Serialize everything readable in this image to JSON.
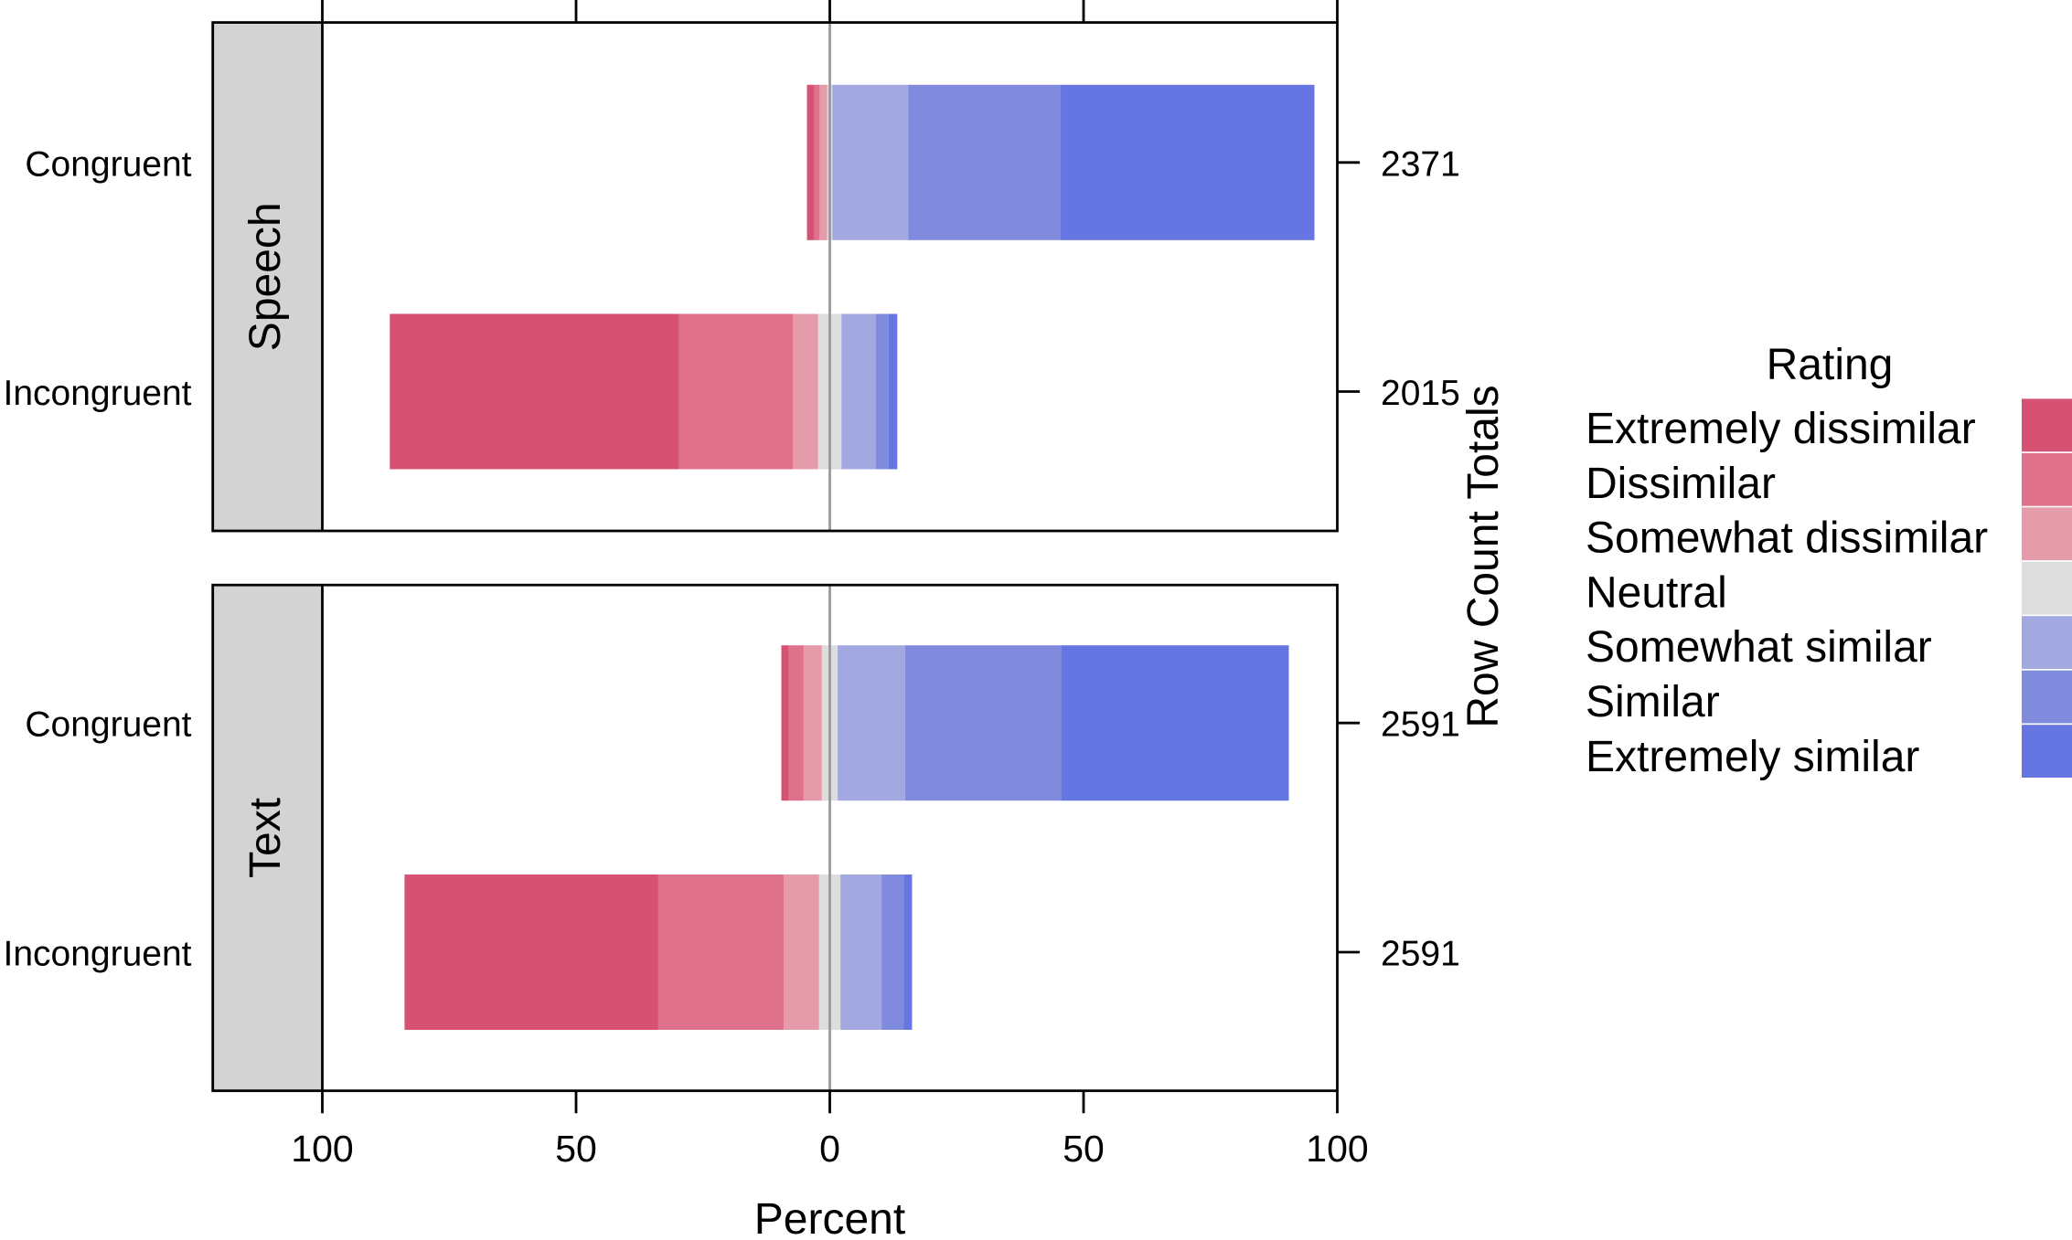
{
  "chart_data": {
    "type": "bar",
    "orientation": "horizontal",
    "stacking": "diverging",
    "xlabel": "Percent",
    "right_label": "Row Count Totals",
    "xlim": [
      -100,
      100
    ],
    "x_ticks": [
      -100,
      -50,
      0,
      50,
      100
    ],
    "x_tick_labels": [
      "100",
      "50",
      "0",
      "50",
      "100"
    ],
    "reference_line": 0,
    "reference_line_color": "#999999",
    "strip_color": "#D3D3D3",
    "legend": {
      "title": "Rating",
      "position": "right",
      "levels": [
        "Extremely dissimilar",
        "Dissimilar",
        "Somewhat dissimilar",
        "Neutral",
        "Somewhat similar",
        "Similar",
        "Extremely similar"
      ],
      "colors": [
        "#D75272",
        "#E0718C",
        "#E59BAA",
        "#DDDDDD",
        "#A3A9E0",
        "#808BDD",
        "#6575E1"
      ]
    },
    "panels": [
      {
        "strip": "Speech",
        "rows": [
          {
            "label": "Congruent",
            "total": 2371,
            "values": [
              1.5,
              1.0,
              1.5,
              1.0,
              15.0,
              30.0,
              50.0
            ]
          },
          {
            "label": "Incongruent",
            "total": 2015,
            "values": [
              57.0,
              22.4,
              5.0,
              4.6,
              6.8,
              2.5,
              1.7
            ]
          }
        ]
      },
      {
        "strip": "Text",
        "rows": [
          {
            "label": "Congruent",
            "total": 2591,
            "values": [
              1.5,
              2.9,
              3.6,
              3.1,
              13.3,
              30.7,
              44.9
            ]
          },
          {
            "label": "Incongruent",
            "total": 2591,
            "values": [
              50.0,
              24.7,
              7.0,
              4.2,
              8.1,
              4.4,
              1.6
            ]
          }
        ]
      }
    ]
  }
}
